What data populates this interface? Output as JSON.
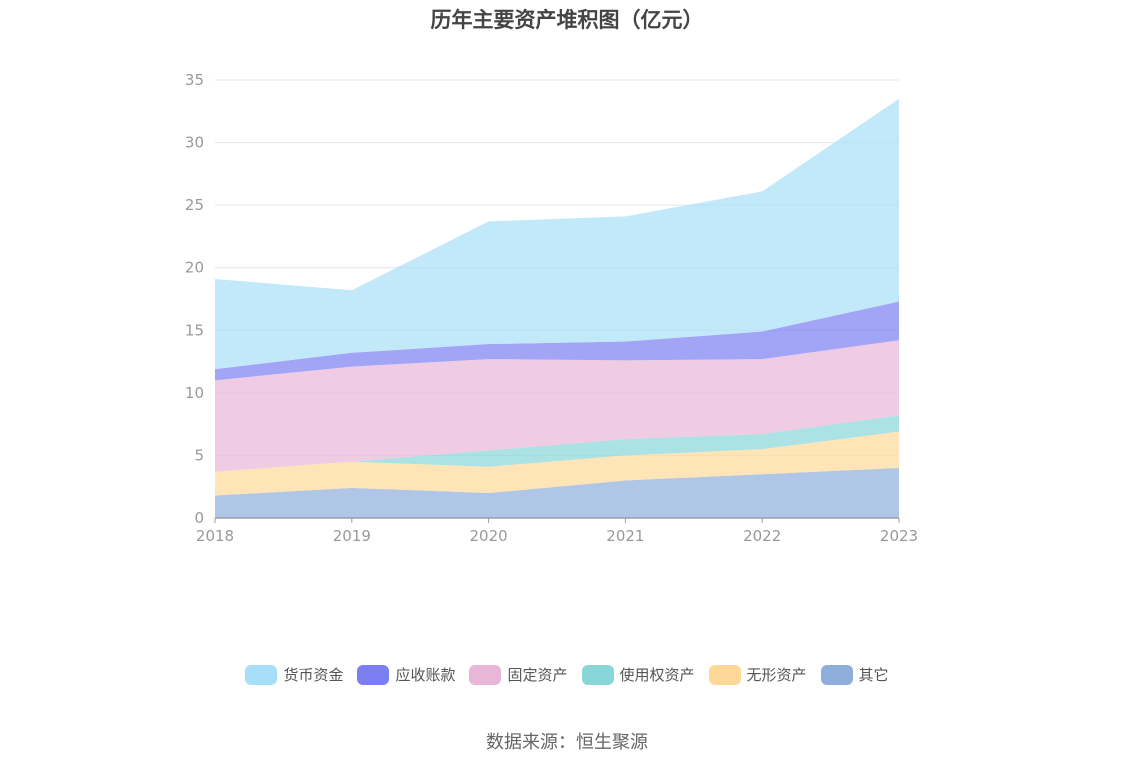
{
  "chart_data": {
    "type": "area",
    "stacked": true,
    "title": "历年主要资产堆积图（亿元）",
    "categories": [
      "2018",
      "2019",
      "2020",
      "2021",
      "2022",
      "2023"
    ],
    "ylim": [
      0,
      35
    ],
    "yticks": [
      0,
      5,
      10,
      15,
      20,
      25,
      30,
      35
    ],
    "grid": true,
    "legend_position": "bottom",
    "series": [
      {
        "name": "其它",
        "color": "#8eaedc",
        "values": [
          1.8,
          2.4,
          2.0,
          3.0,
          3.5,
          4.0
        ]
      },
      {
        "name": "无形资产",
        "color": "#fdd898",
        "values": [
          1.9,
          2.1,
          2.1,
          2.0,
          2.0,
          2.9
        ]
      },
      {
        "name": "使用权资产",
        "color": "#88d6d7",
        "values": [
          0.0,
          0.0,
          1.3,
          1.3,
          1.2,
          1.3
        ]
      },
      {
        "name": "固定资产",
        "color": "#e8b7d8",
        "values": [
          7.3,
          7.6,
          7.3,
          6.3,
          6.0,
          6.0
        ]
      },
      {
        "name": "应收账款",
        "color": "#7b7ff2",
        "values": [
          0.9,
          1.1,
          1.2,
          1.5,
          2.2,
          3.1
        ]
      },
      {
        "name": "货币资金",
        "color": "#a8dff8",
        "values": [
          7.2,
          5.0,
          9.8,
          10.0,
          11.2,
          16.2
        ]
      }
    ]
  },
  "legend": [
    {
      "label": "货币资金",
      "color": "#a8dff8"
    },
    {
      "label": "应收账款",
      "color": "#7b7ff2"
    },
    {
      "label": "固定资产",
      "color": "#e8b7d8"
    },
    {
      "label": "使用权资产",
      "color": "#88d6d7"
    },
    {
      "label": "无形资产",
      "color": "#fdd898"
    },
    {
      "label": "其它",
      "color": "#8eaedc"
    }
  ],
  "source_text": "数据来源：恒生聚源"
}
